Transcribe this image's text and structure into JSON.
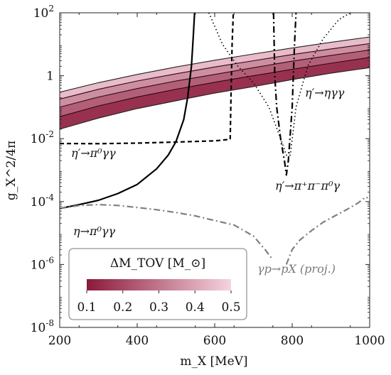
{
  "chart_data": {
    "type": "line",
    "xlabel": "m_X [MeV]",
    "ylabel": "g_X^2/4π",
    "x_scale": "linear",
    "y_scale": "log",
    "xlim": [
      200,
      1000
    ],
    "ylim": [
      1e-08,
      100
    ],
    "x_ticks": [
      200,
      400,
      600,
      800,
      1000
    ],
    "x_tick_labels": [
      "200",
      "400",
      "600",
      "800",
      "1000"
    ],
    "y_ticks": [
      1e-08,
      1e-06,
      0.0001,
      0.01,
      1,
      100
    ],
    "y_tick_labels": [
      {
        "base": "10",
        "exp": "-8"
      },
      {
        "base": "10",
        "exp": "-6"
      },
      {
        "base": "10",
        "exp": "-4"
      },
      {
        "base": "10",
        "exp": "-2"
      },
      {
        "base": "1",
        "exp": ""
      },
      {
        "base": "10",
        "exp": "2"
      }
    ],
    "grid": false,
    "colors": {
      "band_dark": "#8b1a3a",
      "band_light": "#f6d3de",
      "gray_curve": "#808080"
    },
    "band": {
      "x": [
        200,
        300,
        400,
        500,
        600,
        700,
        800,
        900,
        1000
      ],
      "contours": [
        {
          "delta_m": 0.1,
          "y": [
            0.02,
            0.045,
            0.09,
            0.16,
            0.28,
            0.45,
            0.75,
            1.2,
            1.8
          ]
        },
        {
          "delta_m": 0.2,
          "y": [
            0.05,
            0.11,
            0.21,
            0.37,
            0.62,
            1.0,
            1.6,
            2.5,
            3.8
          ]
        },
        {
          "delta_m": 0.3,
          "y": [
            0.1,
            0.21,
            0.39,
            0.68,
            1.1,
            1.8,
            2.9,
            4.4,
            6.6
          ]
        },
        {
          "delta_m": 0.4,
          "y": [
            0.18,
            0.37,
            0.68,
            1.15,
            1.9,
            3.0,
            4.7,
            7.1,
            10.5
          ]
        },
        {
          "delta_m": 0.5,
          "y": [
            0.3,
            0.6,
            1.1,
            1.9,
            3.1,
            4.9,
            7.6,
            11.5,
            17
          ]
        }
      ]
    },
    "series": [
      {
        "style": "solid",
        "x": [
          200,
          250,
          300,
          350,
          400,
          450,
          480,
          500,
          520,
          530,
          540,
          545,
          548
        ],
        "y": [
          6e-05,
          8e-05,
          0.00011,
          0.00018,
          0.00035,
          0.0011,
          0.003,
          0.008,
          0.04,
          0.2,
          2,
          20,
          100
        ]
      },
      {
        "style": "dashed",
        "x": [
          200,
          300,
          400,
          500,
          600,
          640,
          642,
          645,
          648
        ],
        "y": [
          0.007,
          0.0069,
          0.0072,
          0.0078,
          0.0085,
          0.0095,
          0.2,
          10,
          100
        ]
      },
      {
        "style": "dotted",
        "x": [
          585,
          620,
          660,
          700,
          740,
          770,
          785,
          795,
          810,
          840,
          880,
          920,
          950
        ],
        "y": [
          100,
          10,
          2,
          0.6,
          0.1,
          0.01,
          0.003,
          0.003,
          0.1,
          2,
          15,
          60,
          100
        ]
      },
      {
        "style": "dash-dot",
        "x": [
          752,
          755,
          760,
          770,
          780,
          785,
          790,
          800,
          806,
          810
        ],
        "y": [
          100,
          1,
          0.1,
          0.01,
          0.002,
          0.0007,
          0.002,
          0.1,
          10,
          100
        ]
      },
      {
        "style": "dash-dot-gray",
        "x": [
          200,
          250,
          300,
          350,
          400,
          450,
          500,
          550,
          600,
          650,
          700,
          730,
          750
        ],
        "y": [
          6e-05,
          7.5e-05,
          8e-05,
          7.5e-05,
          6.5e-05,
          5.5e-05,
          4.5e-05,
          3.5e-05,
          2.5e-05,
          1.8e-05,
          8e-06,
          3e-06,
          1.4e-06
        ]
      },
      {
        "style": "dash-dot-gray",
        "x": [
          785,
          800,
          820,
          850,
          880,
          910,
          940,
          970,
          990,
          995
        ],
        "y": [
          1e-06,
          3e-06,
          6e-06,
          1.2e-05,
          2.2e-05,
          3.5e-05,
          5.5e-05,
          9e-05,
          0.00014,
          0.00013
        ]
      }
    ],
    "annotations": [
      {
        "text": "η′→π⁰γγ",
        "x": 205,
        "y": 0.0022
      },
      {
        "text": "η→π⁰γγ",
        "x": 205,
        "y": 1.5e-05
      },
      {
        "text": "η′→ηγγ",
        "x": 880,
        "y": 0.3
      },
      {
        "text": "η′→π⁺π⁻π⁰γ",
        "x": 700,
        "y": 0.0002
      },
      {
        "text": "γp→pX (proj.)",
        "x": 810,
        "y": 4e-07
      }
    ],
    "colorbar": {
      "label": "ΔM_TOV [M_⊙]",
      "ticks": [
        0.1,
        0.2,
        0.3,
        0.4,
        0.5
      ],
      "tick_labels": [
        "0.1",
        "0.2",
        "0.3",
        "0.4",
        "0.5"
      ],
      "placement": "bottom-left"
    }
  }
}
